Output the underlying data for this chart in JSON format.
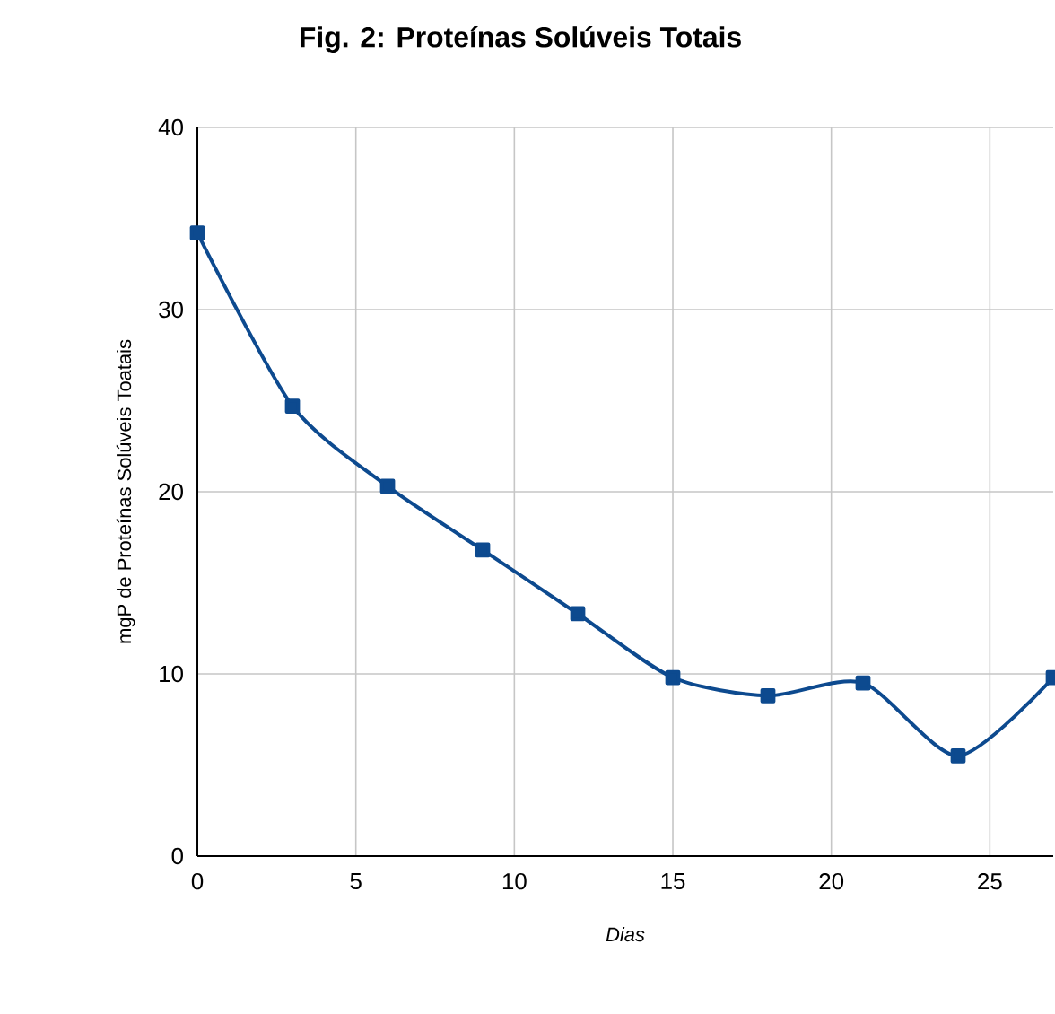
{
  "chart_data": {
    "type": "line",
    "title": "Fig. 2: Proteínas Solúveis Totais",
    "xlabel": "Dias",
    "ylabel": "mgP de Proteínas Solúveis Toatais",
    "x": [
      0,
      3,
      6,
      9,
      12,
      15,
      18,
      21,
      24,
      27
    ],
    "series": [
      {
        "color": "#0d4a8f",
        "values": [
          34.2,
          24.7,
          20.3,
          16.8,
          13.3,
          9.8,
          8.8,
          9.5,
          5.5,
          9.8
        ]
      }
    ],
    "xlim": [
      0,
      27
    ],
    "xticks": [
      0,
      5,
      10,
      15,
      20,
      25
    ],
    "ylim": [
      0,
      40
    ],
    "yticks": [
      0,
      10,
      20,
      30,
      40
    ],
    "grid": true,
    "marker": "square",
    "line_style": "solid"
  }
}
